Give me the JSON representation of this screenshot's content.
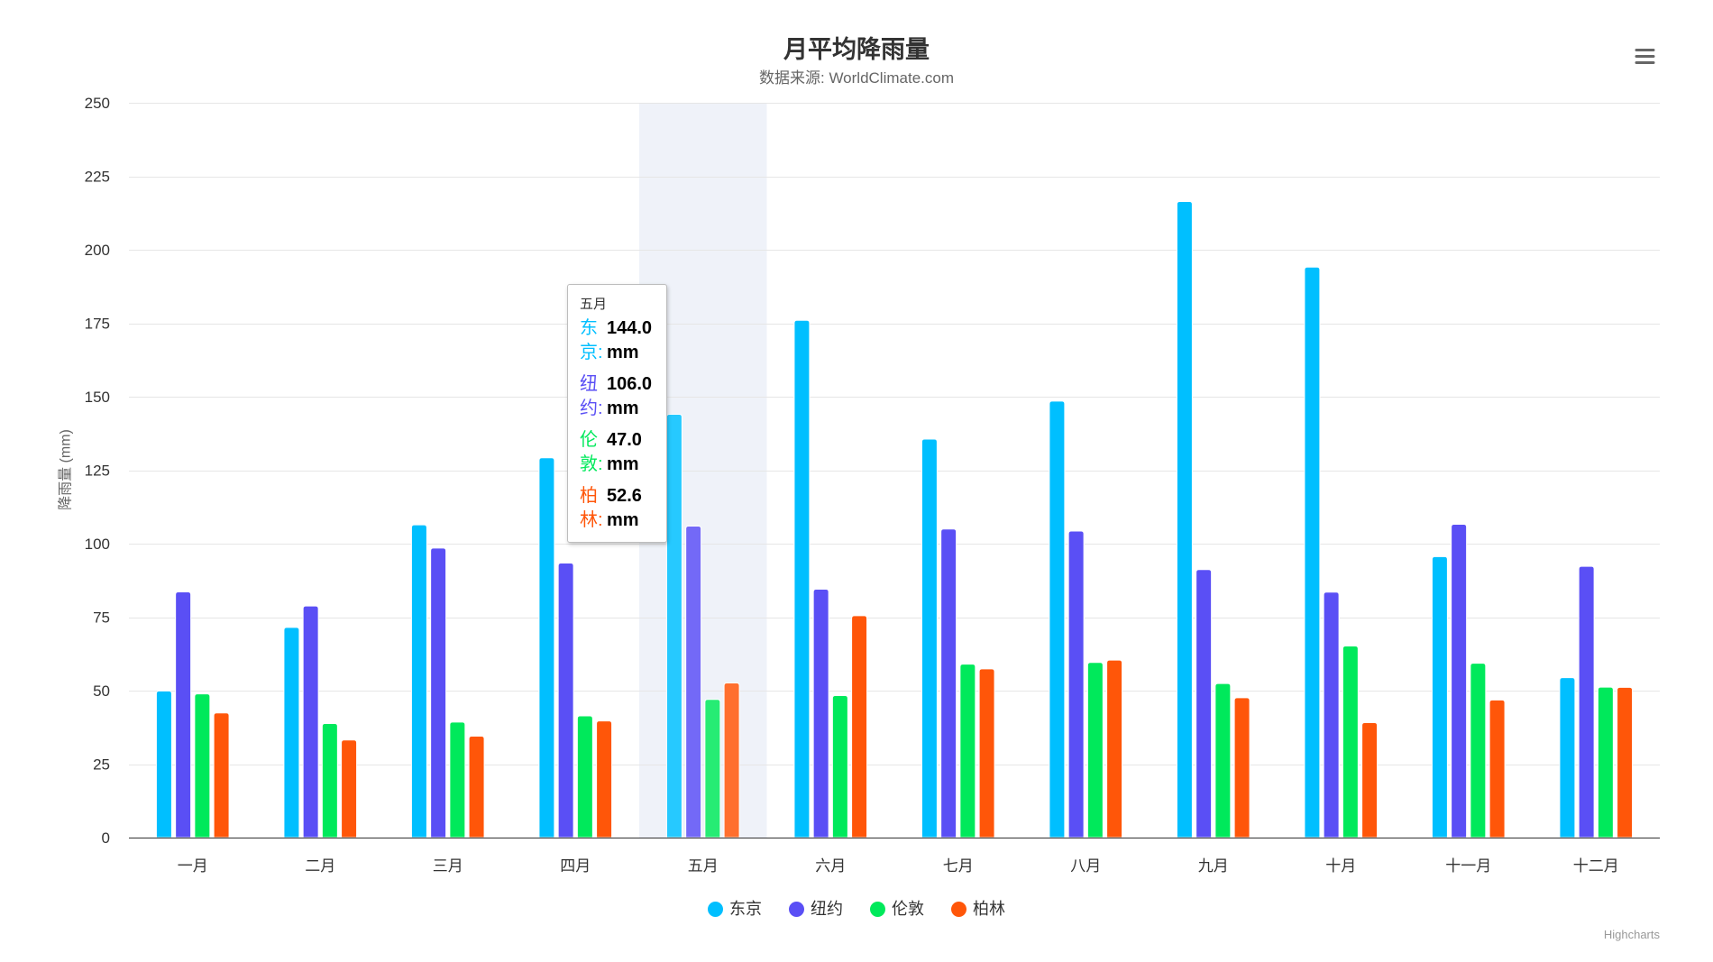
{
  "chart_data": {
    "type": "bar",
    "title": "月平均降雨量",
    "subtitle": "数据来源: WorldClimate.com",
    "xlabel": "",
    "ylabel": "降雨量 (mm)",
    "categories": [
      "一月",
      "二月",
      "三月",
      "四月",
      "五月",
      "六月",
      "七月",
      "八月",
      "九月",
      "十月",
      "十一月",
      "十二月"
    ],
    "ylim": [
      0,
      250
    ],
    "yticks": [
      0,
      25,
      50,
      75,
      100,
      125,
      150,
      175,
      200,
      225,
      250
    ],
    "grid": true,
    "legend_position": "bottom-center",
    "series": [
      {
        "name": "东京",
        "color": "#00bfff",
        "values": [
          49.9,
          71.5,
          106.4,
          129.2,
          144.0,
          176.0,
          135.6,
          148.5,
          216.4,
          194.1,
          95.6,
          54.4
        ]
      },
      {
        "name": "纽约",
        "color": "#5a4ff5",
        "values": [
          83.6,
          78.8,
          98.5,
          93.4,
          106.0,
          84.5,
          105.0,
          104.3,
          91.2,
          83.5,
          106.6,
          92.3
        ]
      },
      {
        "name": "伦敦",
        "color": "#00e95b",
        "values": [
          48.9,
          38.8,
          39.3,
          41.4,
          47.0,
          48.3,
          59.0,
          59.6,
          52.4,
          65.2,
          59.3,
          51.2
        ]
      },
      {
        "name": "柏林",
        "color": "#ff5609",
        "values": [
          42.4,
          33.2,
          34.5,
          39.7,
          52.6,
          75.5,
          57.4,
          60.4,
          47.6,
          39.1,
          46.8,
          51.1
        ]
      }
    ]
  },
  "tooltip": {
    "category": "五月",
    "rows": [
      {
        "label": "东京:",
        "value": "144.0 mm"
      },
      {
        "label": "纽约:",
        "value": "106.0 mm"
      },
      {
        "label": "伦敦:",
        "value": "47.0 mm"
      },
      {
        "label": "柏林:",
        "value": "52.6 mm"
      }
    ]
  },
  "credits": "Highcharts",
  "icons": {
    "menu": "hamburger-icon"
  }
}
